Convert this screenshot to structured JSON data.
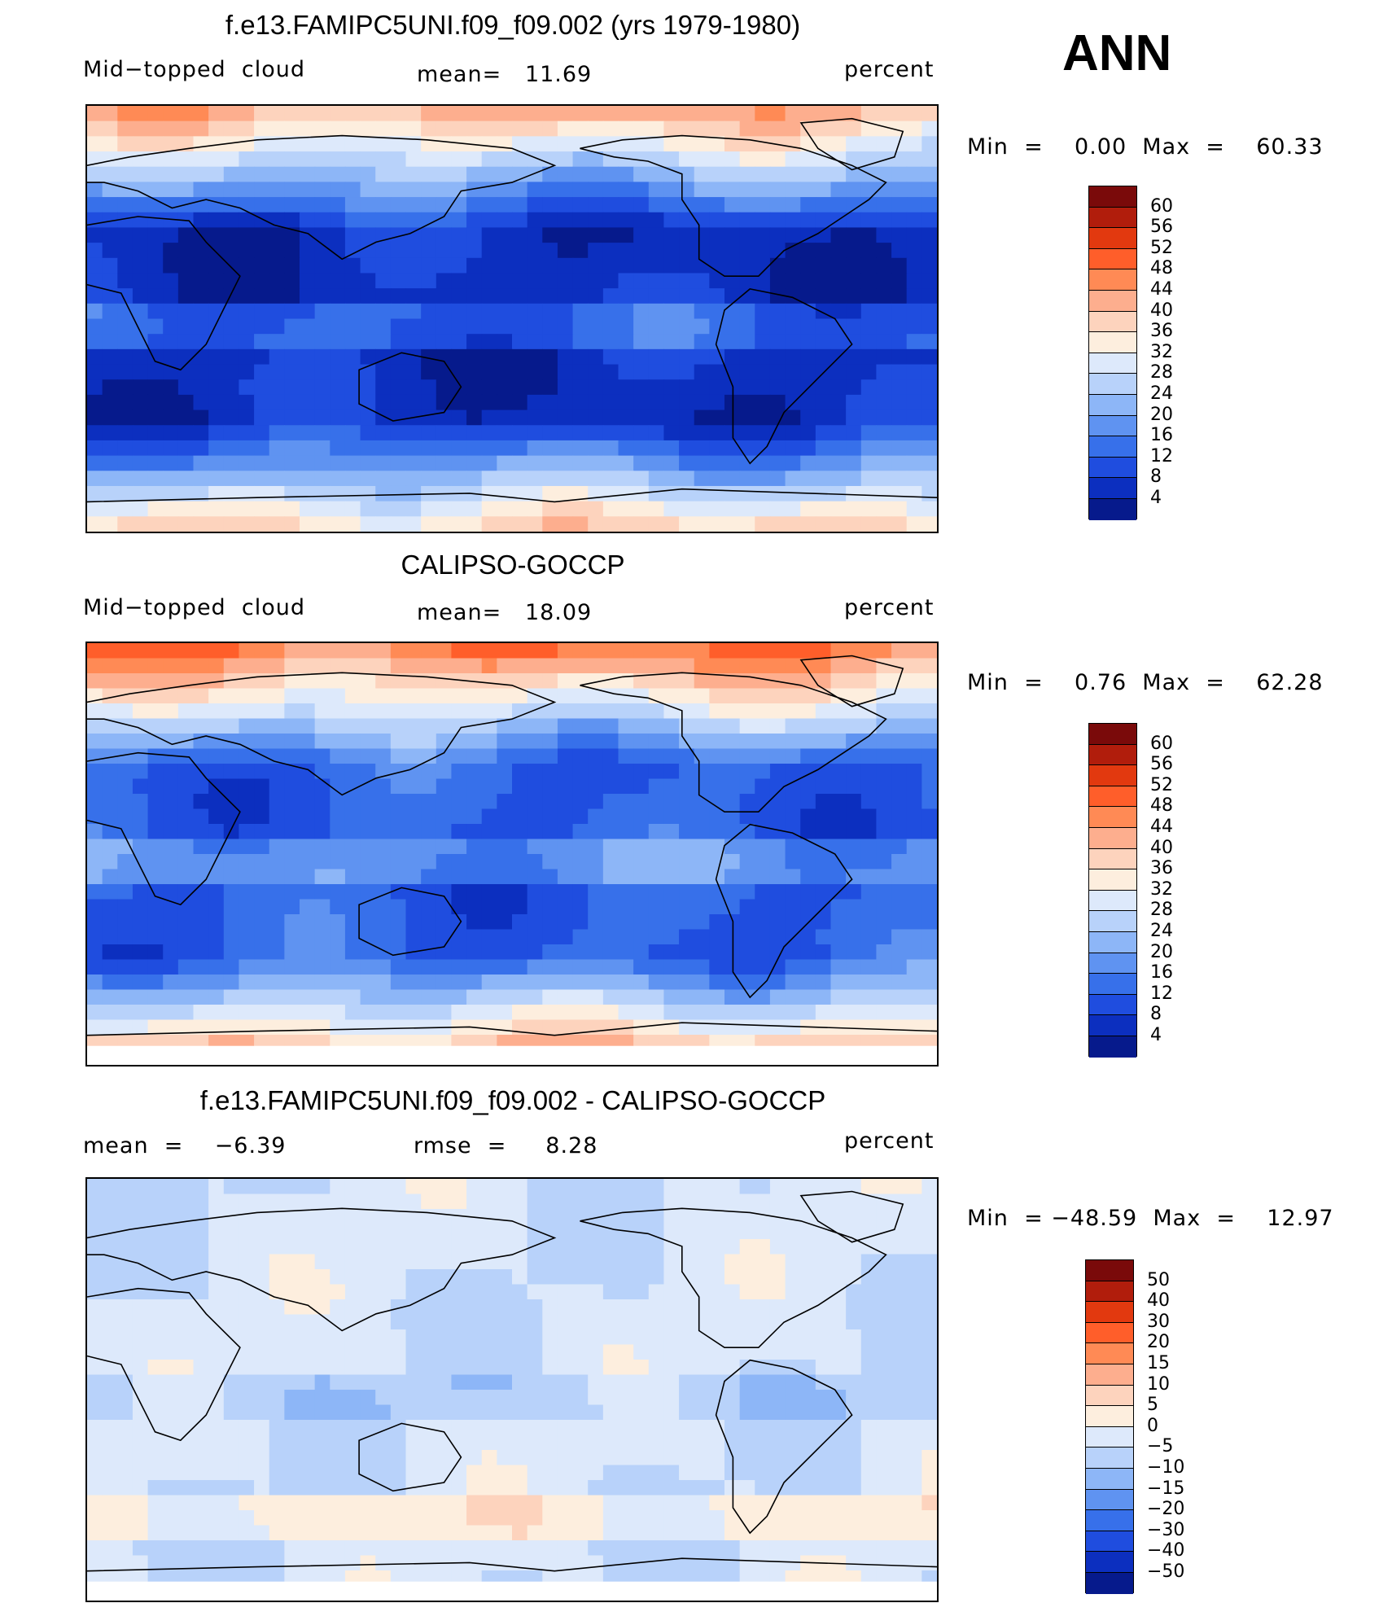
{
  "season": "ANN",
  "panels": [
    {
      "title": "f.e13.FAMIPC5UNI.f09_f09.002 (yrs 1979-1980)",
      "left_label": "Mid−topped  cloud",
      "center_label": "mean=   11.69",
      "right_label": "percent",
      "stats": "Min  =    0.00  Max  =    60.33",
      "colorbar_ticks": [
        "60",
        "56",
        "52",
        "48",
        "44",
        "40",
        "36",
        "32",
        "28",
        "24",
        "20",
        "16",
        "12",
        "8",
        "4"
      ],
      "colorbar_colors": [
        "#7a0a0a",
        "#b11d0c",
        "#e2390f",
        "#ff5e2a",
        "#ff8a55",
        "#fdae8e",
        "#fdd3bd",
        "#fdeede",
        "#dde9fb",
        "#b8d2fa",
        "#8db6f7",
        "#5f93f1",
        "#3770ea",
        "#1f4ddf",
        "#0c2fbf",
        "#061a8c"
      ],
      "style": "model"
    },
    {
      "title": "CALIPSO-GOCCP",
      "left_label": "Mid−topped  cloud",
      "center_label": "mean=   18.09",
      "right_label": "percent",
      "stats": "Min  =    0.76  Max  =    62.28",
      "colorbar_ticks": [
        "60",
        "56",
        "52",
        "48",
        "44",
        "40",
        "36",
        "32",
        "28",
        "24",
        "20",
        "16",
        "12",
        "8",
        "4"
      ],
      "colorbar_colors": [
        "#7a0a0a",
        "#b11d0c",
        "#e2390f",
        "#ff5e2a",
        "#ff8a55",
        "#fdae8e",
        "#fdd3bd",
        "#fdeede",
        "#dde9fb",
        "#b8d2fa",
        "#8db6f7",
        "#5f93f1",
        "#3770ea",
        "#1f4ddf",
        "#0c2fbf",
        "#061a8c"
      ],
      "style": "obs"
    },
    {
      "title": "f.e13.FAMIPC5UNI.f09_f09.002 - CALIPSO-GOCCP",
      "left_label": "mean  =    −6.39",
      "center_label": "rmse  =     8.28",
      "right_label": "percent",
      "stats": "Min  = −48.59  Max  =    12.97",
      "colorbar_ticks": [
        "50",
        "40",
        "30",
        "20",
        "15",
        "10",
        "5",
        "0",
        "−5",
        "−10",
        "−15",
        "−20",
        "−30",
        "−40",
        "−50"
      ],
      "colorbar_colors": [
        "#7a0a0a",
        "#b11d0c",
        "#e2390f",
        "#ff5e2a",
        "#ff8a55",
        "#fdae8e",
        "#fdd3bd",
        "#fdeede",
        "#dde9fb",
        "#b8d2fa",
        "#8db6f7",
        "#5f93f1",
        "#3770ea",
        "#1f4ddf",
        "#0c2fbf",
        "#061a8c"
      ],
      "style": "diff"
    }
  ],
  "chart_data": [
    {
      "type": "heatmap",
      "title": "f.e13.FAMIPC5UNI.f09_f09.002 (yrs 1979-1980)",
      "variable": "Mid−topped  cloud",
      "units": "percent",
      "mean": 11.69,
      "min": 0.0,
      "max": 60.33,
      "levels": [
        4,
        8,
        12,
        16,
        20,
        24,
        28,
        32,
        36,
        40,
        44,
        48,
        52,
        56,
        60
      ]
    },
    {
      "type": "heatmap",
      "title": "CALIPSO-GOCCP",
      "variable": "Mid−topped  cloud",
      "units": "percent",
      "mean": 18.09,
      "min": 0.76,
      "max": 62.28,
      "levels": [
        4,
        8,
        12,
        16,
        20,
        24,
        28,
        32,
        36,
        40,
        44,
        48,
        52,
        56,
        60
      ]
    },
    {
      "type": "heatmap",
      "title": "f.e13.FAMIPC5UNI.f09_f09.002 - CALIPSO-GOCCP",
      "units": "percent",
      "mean": -6.39,
      "rmse": 8.28,
      "min": -48.59,
      "max": 12.97,
      "levels": [
        -50,
        -40,
        -30,
        -20,
        -15,
        -10,
        -5,
        0,
        5,
        10,
        15,
        20,
        30,
        40,
        50
      ]
    }
  ]
}
